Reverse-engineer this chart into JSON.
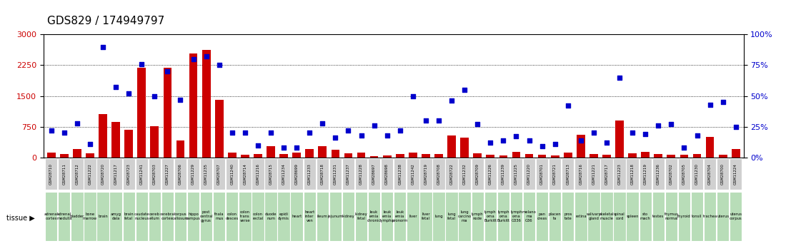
{
  "title": "GDS829 / 174949797",
  "samples": [
    "GSM28710",
    "GSM28711",
    "GSM28712",
    "GSM11222",
    "GSM28720",
    "GSM11217",
    "GSM28723",
    "GSM11241",
    "GSM28703",
    "GSM11227",
    "GSM28706",
    "GSM11229",
    "GSM11235",
    "GSM28707",
    "GSM11240",
    "GSM28714",
    "GSM11216",
    "GSM28715",
    "GSM11234",
    "GSM28699",
    "GSM11233",
    "GSM28718",
    "GSM11231",
    "GSM11237",
    "GSM11228",
    "GSM28697",
    "GSM28698",
    "GSM11238",
    "GSM11242",
    "GSM28719",
    "GSM28708",
    "GSM28722",
    "GSM11232",
    "GSM28709",
    "GSM11226",
    "GSM11239",
    "GSM11225",
    "GSM11220",
    "GSM28701",
    "GSM28721",
    "GSM28713",
    "GSM28716",
    "GSM11221",
    "GSM28717",
    "GSM11223",
    "GSM11218",
    "GSM11219",
    "GSM11236",
    "GSM28702",
    "GSM28705",
    "GSM11230",
    "GSM28704",
    "GSM28700",
    "GSM11224"
  ],
  "tissues": [
    "adrenal\ncortex",
    "adrenal\nmedulla",
    "bladder",
    "bone\nmarrow",
    "brain",
    "amyg\ndala",
    "brain\nfetal",
    "caudate\nnucleus",
    "cereb\nellum",
    "cerebral\ncortex",
    "corpus\ncallosum",
    "hippo\ncampus",
    "post\ncentral\ngyrus",
    "thala\nmus",
    "colon\ndesces",
    "colon\ntrans\nverse",
    "colon\nrectal",
    "duode\nnum",
    "epidi\ndymis",
    "heart",
    "heart\ninter\nven",
    "ileum",
    "jejunum",
    "kidney",
    "kidney\nfetal",
    "leuk\nemia\nchronic",
    "leuk\nemia\nlympho",
    "leuk\nemia\npronorm",
    "liver",
    "liver\nfetal",
    "lung",
    "lung\nfetal",
    "lung\ncarcino\nma",
    "lymph\nnode",
    "lymph\noma\nBurkitt",
    "lymph\noma\nBurkitt",
    "lymph\noma\nG336",
    "melano\nma\nG36",
    "pan\ncreas",
    "placen\nta",
    "pros\ntate",
    "retina",
    "salivary\ngland",
    "skeletal\nmuscle",
    "spinal\ncord",
    "spleen",
    "sto\nmach",
    "testes",
    "thymus\nnormal",
    "thyroid",
    "tonsil",
    "trachea",
    "uterus",
    "uterus\ncorpus"
  ],
  "counts": [
    120,
    80,
    200,
    100,
    1050,
    860,
    680,
    2190,
    760,
    2180,
    420,
    2530,
    2620,
    1410,
    120,
    60,
    80,
    280,
    80,
    120,
    200,
    280,
    180,
    100,
    120,
    30,
    50,
    90,
    120,
    80,
    80,
    540,
    480,
    100,
    70,
    50,
    130,
    80,
    60,
    50,
    120,
    550,
    80,
    60,
    900,
    100,
    130,
    80,
    60,
    60,
    80,
    500,
    70,
    200
  ],
  "percentiles": [
    22,
    20,
    28,
    11,
    90,
    57,
    52,
    76,
    50,
    70,
    47,
    80,
    82,
    75,
    20,
    20,
    10,
    20,
    8,
    8,
    20,
    28,
    16,
    22,
    18,
    26,
    18,
    22,
    50,
    30,
    30,
    46,
    55,
    27,
    12,
    14,
    17,
    14,
    9,
    11,
    42,
    14,
    20,
    12,
    65,
    20,
    19,
    26,
    27,
    8,
    18,
    43,
    45,
    25
  ],
  "bar_color": "#cc0000",
  "dot_color": "#0000cc",
  "left_ylim": [
    0,
    3000
  ],
  "right_ylim": [
    0,
    100
  ],
  "left_yticks": [
    0,
    750,
    1500,
    2250,
    3000
  ],
  "right_yticks": [
    0,
    25,
    50,
    75,
    100
  ],
  "left_ytick_labels": [
    "0",
    "750",
    "1500",
    "2250",
    "3000"
  ],
  "right_ytick_labels": [
    "0%",
    "25%",
    "50%",
    "75%",
    "100%"
  ],
  "bar_width": 0.65,
  "bg_color": "#ffffff",
  "title_fontsize": 11,
  "tissue_color": "#b8ddb8",
  "sample_box_color": "#d0d0d0",
  "tissue_label": "tissue"
}
